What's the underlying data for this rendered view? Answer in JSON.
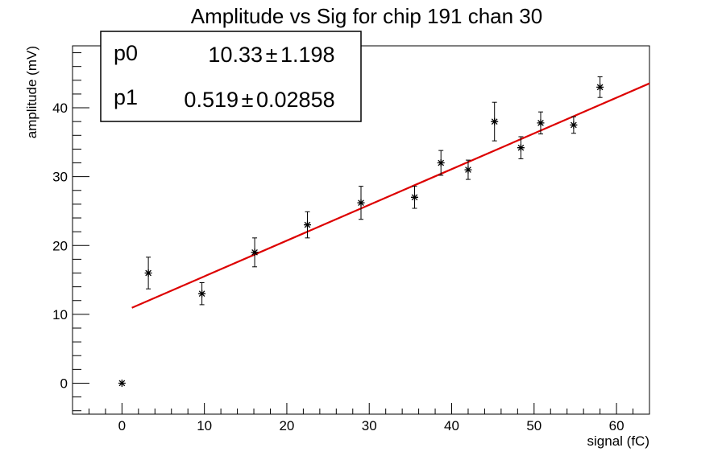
{
  "chart_data": {
    "type": "scatter",
    "title": "Amplitude vs Sig for chip 191 chan 30",
    "xlabel": "signal (fC)",
    "ylabel": "amplitude (mV)",
    "xlim": [
      -6,
      64
    ],
    "ylim": [
      -4.5,
      49
    ],
    "x_ticks": [
      0,
      10,
      20,
      30,
      40,
      50,
      60
    ],
    "y_ticks": [
      0,
      10,
      20,
      30,
      40
    ],
    "grid": false,
    "series": [
      {
        "marker": "star",
        "color": "#000000",
        "points": [
          {
            "x": 0.0,
            "y": 0.0,
            "err": 0.0
          },
          {
            "x": 3.2,
            "y": 16.0,
            "err": 2.3
          },
          {
            "x": 9.7,
            "y": 13.0,
            "err": 1.6
          },
          {
            "x": 16.1,
            "y": 19.0,
            "err": 2.1
          },
          {
            "x": 22.5,
            "y": 23.0,
            "err": 1.9
          },
          {
            "x": 29.0,
            "y": 26.2,
            "err": 2.4
          },
          {
            "x": 35.5,
            "y": 27.0,
            "err": 1.6
          },
          {
            "x": 38.7,
            "y": 32.0,
            "err": 1.8
          },
          {
            "x": 42.0,
            "y": 31.0,
            "err": 1.4
          },
          {
            "x": 45.2,
            "y": 38.0,
            "err": 2.8
          },
          {
            "x": 48.4,
            "y": 34.2,
            "err": 1.6
          },
          {
            "x": 50.8,
            "y": 37.8,
            "err": 1.6
          },
          {
            "x": 54.8,
            "y": 37.5,
            "err": 1.2
          },
          {
            "x": 58.0,
            "y": 43.0,
            "err": 1.5
          }
        ]
      }
    ],
    "fit": {
      "type": "linear",
      "color": "#dd0000",
      "x_range": [
        1.2,
        64
      ],
      "p0": 10.33,
      "p1": 0.519
    },
    "stats_box": {
      "placement": "top-left",
      "rows": [
        {
          "name": "p0",
          "value": "10.33",
          "pm": "±",
          "error": "1.198"
        },
        {
          "name": "p1",
          "value": "0.519",
          "pm": "±",
          "error": "0.02858"
        }
      ]
    }
  }
}
